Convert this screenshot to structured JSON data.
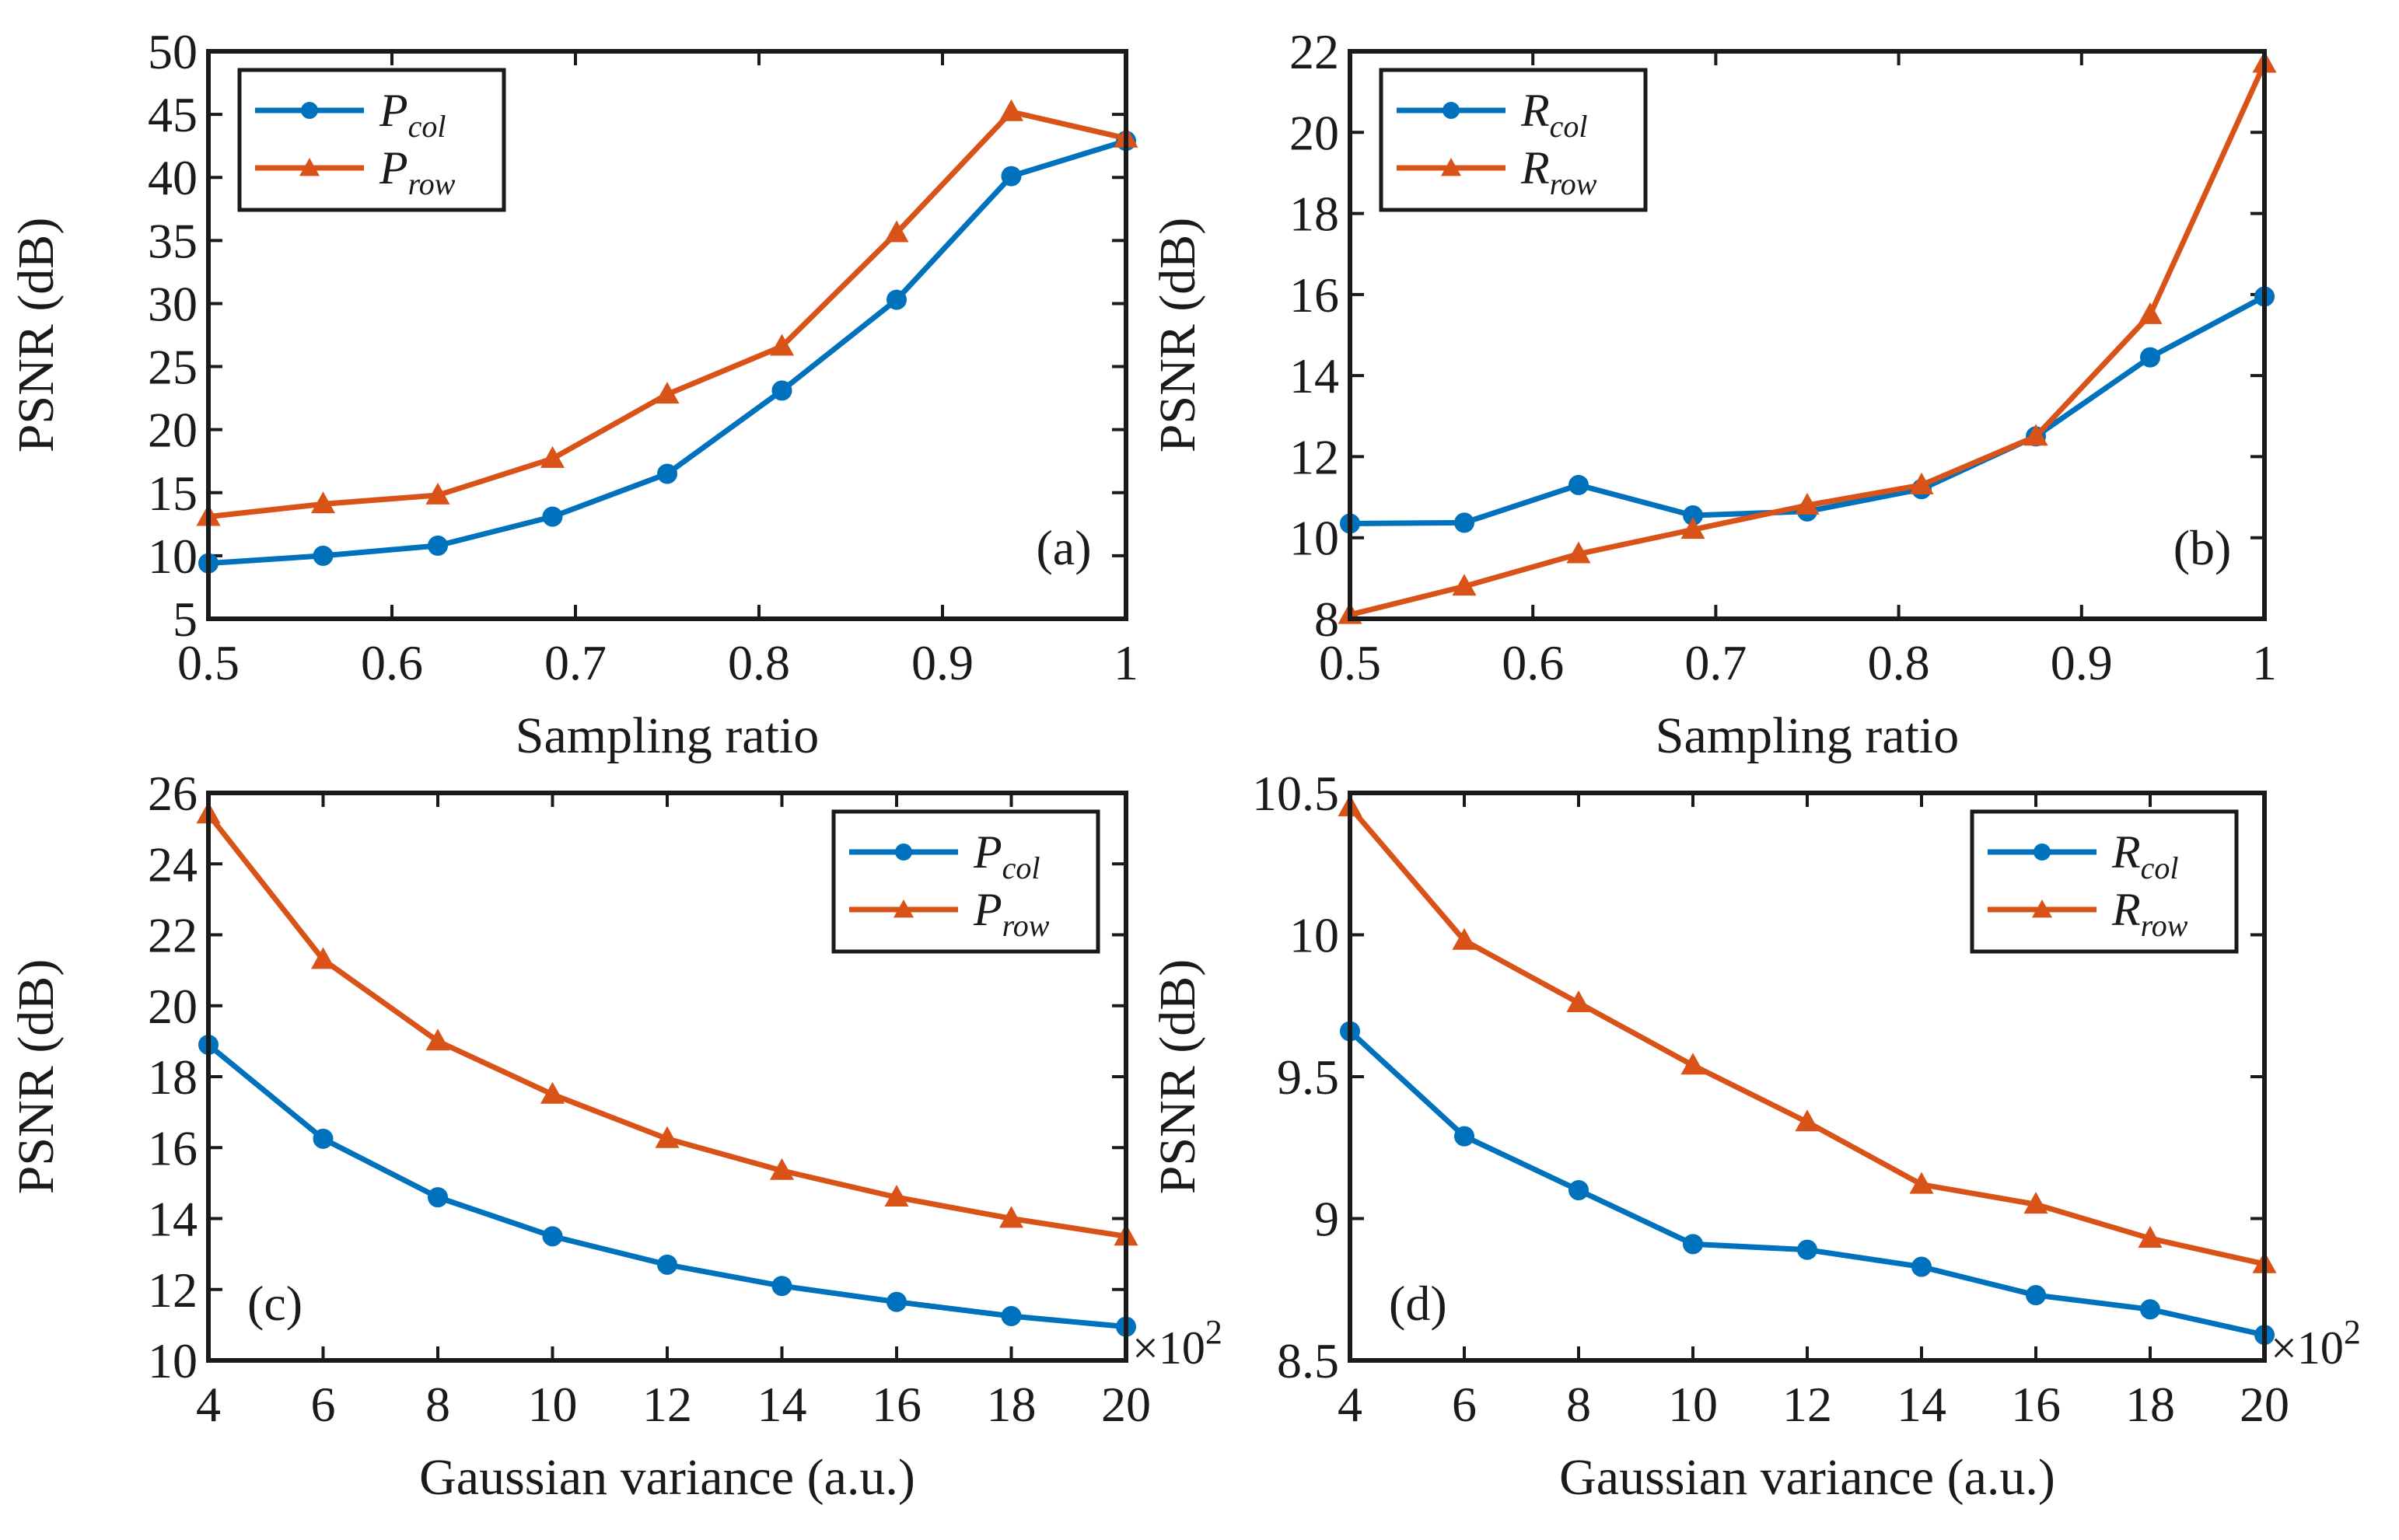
{
  "colors": {
    "series1": "#0072BD",
    "series2": "#D95319",
    "axis": "#1a1a1a"
  },
  "chart_data": [
    {
      "type": "line",
      "panel_label": "(a)",
      "xlabel": "Sampling ratio",
      "ylabel": "PSNR (dB)",
      "xlim": [
        0.5,
        1
      ],
      "ylim": [
        5,
        50
      ],
      "xticks": [
        0.5,
        0.6,
        0.7,
        0.8,
        0.9,
        1
      ],
      "xtick_labels": [
        "0.5",
        "0.6",
        "0.7",
        "0.8",
        "0.9",
        "1"
      ],
      "yticks": [
        5,
        10,
        15,
        20,
        25,
        30,
        35,
        40,
        45,
        50
      ],
      "ytick_labels": [
        "5",
        "10",
        "15",
        "20",
        "25",
        "30",
        "35",
        "40",
        "45",
        "50"
      ],
      "legend_position": "top-left",
      "x_exponent": "",
      "x": [
        0.5,
        0.5625,
        0.625,
        0.6875,
        0.75,
        0.8125,
        0.875,
        0.9375,
        1.0
      ],
      "series": [
        {
          "name_main": "P",
          "name_sub": "col",
          "marker": "circle",
          "color_key": "series1",
          "values": [
            9.4,
            10.0,
            10.8,
            13.1,
            16.5,
            23.1,
            30.3,
            40.1,
            42.9
          ]
        },
        {
          "name_main": "P",
          "name_sub": "row",
          "marker": "triangle",
          "color_key": "series2",
          "values": [
            13.1,
            14.1,
            14.8,
            17.7,
            22.8,
            26.6,
            35.6,
            45.2,
            43.1
          ]
        }
      ]
    },
    {
      "type": "line",
      "panel_label": "(b)",
      "xlabel": "Sampling ratio",
      "ylabel": "PSNR (dB)",
      "xlim": [
        0.5,
        1
      ],
      "ylim": [
        8,
        22
      ],
      "xticks": [
        0.5,
        0.6,
        0.7,
        0.8,
        0.9,
        1
      ],
      "xtick_labels": [
        "0.5",
        "0.6",
        "0.7",
        "0.8",
        "0.9",
        "1"
      ],
      "yticks": [
        8,
        10,
        12,
        14,
        16,
        18,
        20,
        22
      ],
      "ytick_labels": [
        "8",
        "10",
        "12",
        "14",
        "16",
        "18",
        "20",
        "22"
      ],
      "legend_position": "top-left",
      "x_exponent": "",
      "x": [
        0.5,
        0.5625,
        0.625,
        0.6875,
        0.75,
        0.8125,
        0.875,
        0.9375,
        1.0
      ],
      "series": [
        {
          "name_main": "R",
          "name_sub": "col",
          "marker": "circle",
          "color_key": "series1",
          "values": [
            10.35,
            10.37,
            11.3,
            10.55,
            10.65,
            11.2,
            12.5,
            14.45,
            15.95
          ]
        },
        {
          "name_main": "R",
          "name_sub": "row",
          "marker": "triangle",
          "color_key": "series2",
          "values": [
            8.1,
            8.8,
            9.6,
            10.2,
            10.8,
            11.3,
            12.5,
            15.5,
            21.7
          ]
        }
      ]
    },
    {
      "type": "line",
      "panel_label": "(c)",
      "xlabel": "Gaussian variance (a.u.)",
      "ylabel": "PSNR (dB)",
      "xlim": [
        4,
        20
      ],
      "ylim": [
        10,
        26
      ],
      "xticks": [
        4,
        6,
        8,
        10,
        12,
        14,
        16,
        18,
        20
      ],
      "xtick_labels": [
        "4",
        "6",
        "8",
        "10",
        "12",
        "14",
        "16",
        "18",
        "20"
      ],
      "yticks": [
        10,
        12,
        14,
        16,
        18,
        20,
        22,
        24,
        26
      ],
      "ytick_labels": [
        "10",
        "12",
        "14",
        "16",
        "18",
        "20",
        "22",
        "24",
        "26"
      ],
      "legend_position": "top-right",
      "x_exponent": "×10",
      "x_exponent_power": "2",
      "x": [
        4,
        6,
        8,
        10,
        12,
        14,
        16,
        18,
        20
      ],
      "series": [
        {
          "name_main": "P",
          "name_sub": "col",
          "marker": "circle",
          "color_key": "series1",
          "values": [
            18.9,
            16.25,
            14.6,
            13.5,
            12.7,
            12.1,
            11.65,
            11.25,
            10.95
          ]
        },
        {
          "name_main": "P",
          "name_sub": "row",
          "marker": "triangle",
          "color_key": "series2",
          "values": [
            25.4,
            21.3,
            19.0,
            17.5,
            16.25,
            15.35,
            14.6,
            14.0,
            13.5
          ]
        }
      ]
    },
    {
      "type": "line",
      "panel_label": "(d)",
      "xlabel": "Gaussian variance (a.u.)",
      "ylabel": "PSNR (dB)",
      "xlim": [
        4,
        20
      ],
      "ylim": [
        8.5,
        10.5
      ],
      "xticks": [
        4,
        6,
        8,
        10,
        12,
        14,
        16,
        18,
        20
      ],
      "xtick_labels": [
        "4",
        "6",
        "8",
        "10",
        "12",
        "14",
        "16",
        "18",
        "20"
      ],
      "yticks": [
        8.5,
        9,
        9.5,
        10,
        10.5
      ],
      "ytick_labels": [
        "8.5",
        "9",
        "9.5",
        "10",
        "10.5"
      ],
      "legend_position": "top-right",
      "x_exponent": "×10",
      "x_exponent_power": "2",
      "x": [
        4,
        6,
        8,
        10,
        12,
        14,
        16,
        18,
        20
      ],
      "series": [
        {
          "name_main": "R",
          "name_sub": "col",
          "marker": "circle",
          "color_key": "series1",
          "values": [
            9.66,
            9.29,
            9.1,
            8.91,
            8.89,
            8.83,
            8.73,
            8.68,
            8.59
          ]
        },
        {
          "name_main": "R",
          "name_sub": "row",
          "marker": "triangle",
          "color_key": "series2",
          "values": [
            10.45,
            9.98,
            9.76,
            9.54,
            9.34,
            9.12,
            9.05,
            8.93,
            8.84
          ]
        }
      ]
    }
  ]
}
